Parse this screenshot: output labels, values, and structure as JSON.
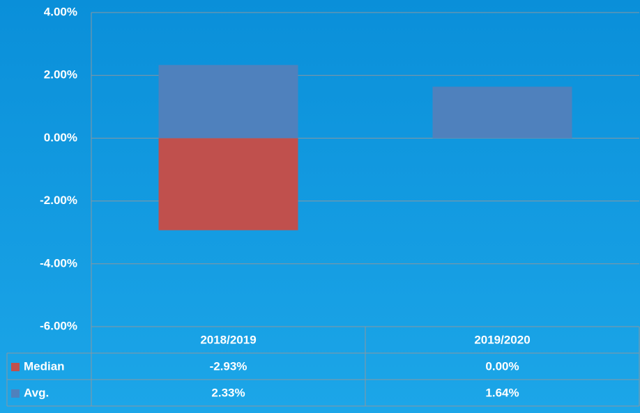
{
  "chart_data": {
    "type": "bar",
    "categories": [
      "2018/2019",
      "2019/2020"
    ],
    "series": [
      {
        "name": "Median",
        "color": "#c0504d",
        "values": [
          -2.93,
          0
        ],
        "value_labels": [
          "-2.93%",
          "0.00%"
        ]
      },
      {
        "name": "Avg.",
        "color": "#4f81bd",
        "values": [
          2.33,
          1.64
        ],
        "value_labels": [
          "2.33%",
          "1.64%"
        ]
      }
    ],
    "ylim": [
      -6,
      4
    ],
    "yticks": [
      {
        "value": -6,
        "label": "-6.00%"
      },
      {
        "value": -4,
        "label": "-4.00%"
      },
      {
        "value": -2,
        "label": "-2.00%"
      },
      {
        "value": 0,
        "label": "0.00%"
      },
      {
        "value": 2,
        "label": "2.00%"
      },
      {
        "value": 4,
        "label": "4.00%"
      }
    ],
    "grid": true
  }
}
